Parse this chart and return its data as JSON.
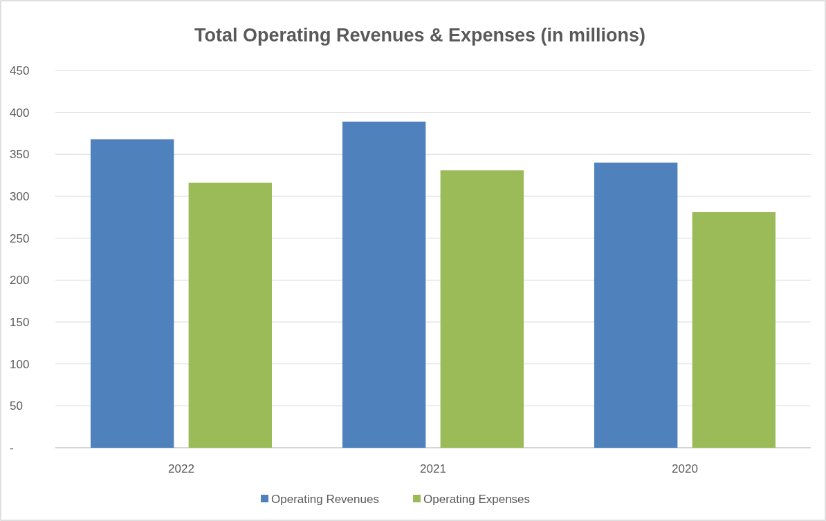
{
  "chart_data": {
    "type": "bar",
    "title": "Total Operating Revenues & Expenses (in millions)",
    "categories": [
      "2022",
      "2021",
      "2020"
    ],
    "series": [
      {
        "name": "Operating Revenues",
        "color": "#4f81bd",
        "values": [
          368,
          389,
          340
        ]
      },
      {
        "name": "Operating Expenses",
        "color": "#9bbb59",
        "values": [
          316,
          331,
          281
        ]
      }
    ],
    "ylim": [
      0,
      450
    ],
    "yticks": [
      {
        "value": 0,
        "label": "-"
      },
      50,
      100,
      150,
      200,
      250,
      300,
      350,
      400,
      450
    ],
    "grid": "y",
    "legend": "bottom"
  }
}
